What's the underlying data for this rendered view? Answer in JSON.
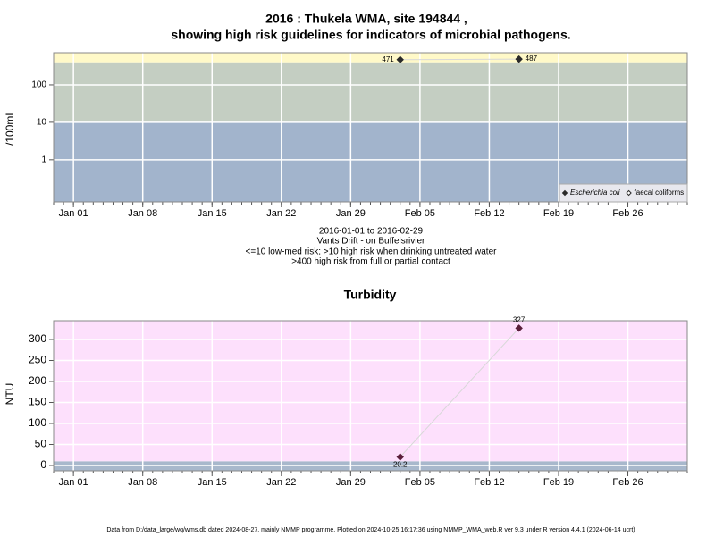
{
  "chart_data": [
    {
      "type": "line",
      "title": [
        "2016 : Thukela WMA, site 194844 ,",
        "showing high risk guidelines for indicators of microbial pathogens."
      ],
      "subtitle": [
        "2016-01-01 to 2016-02-29",
        "Vants Drift - on Buffelsrivier",
        "<=10 low-med risk; >10 high risk when drinking untreated water",
        ">400 high risk from full or partial contact"
      ],
      "y_label": "/100mL",
      "log_y": true,
      "xlim": [
        "2015-12-30",
        "2016-03-03"
      ],
      "xticks": [
        {
          "value": "2016-01-01",
          "label": "Jan 01"
        },
        {
          "value": "2016-01-08",
          "label": "Jan 08"
        },
        {
          "value": "2016-01-15",
          "label": "Jan 15"
        },
        {
          "value": "2016-01-22",
          "label": "Jan 22"
        },
        {
          "value": "2016-01-29",
          "label": "Jan 29"
        },
        {
          "value": "2016-02-05",
          "label": "Feb 05"
        },
        {
          "value": "2016-02-12",
          "label": "Feb 12"
        },
        {
          "value": "2016-02-19",
          "label": "Feb 19"
        },
        {
          "value": "2016-02-26",
          "label": "Feb 26"
        }
      ],
      "ylim": [
        0.075,
        720
      ],
      "yticks": [
        1,
        10,
        100
      ],
      "thresholds": [
        10,
        400
      ],
      "band_colors": [
        "#a2b4cc",
        "#c4cec2",
        "#fff9c8"
      ],
      "grid": true,
      "legend": "lower right",
      "series": [
        {
          "name": "Escherichia coli",
          "color": "#2a2a2a",
          "marker": "filled",
          "x": [
            "2016-02-03",
            "2016-02-15"
          ],
          "values": [
            471,
            487
          ]
        },
        {
          "name": "faecal coliforms",
          "color": "#2a2a2a",
          "marker": "open",
          "x": [],
          "values": []
        }
      ]
    },
    {
      "type": "line",
      "title": [
        "Turbidity"
      ],
      "y_label": "NTU",
      "log_y": false,
      "xlim": [
        "2015-12-30",
        "2016-03-03"
      ],
      "xticks": [
        {
          "value": "2016-01-01",
          "label": "Jan 01"
        },
        {
          "value": "2016-01-08",
          "label": "Jan 08"
        },
        {
          "value": "2016-01-15",
          "label": "Jan 15"
        },
        {
          "value": "2016-01-22",
          "label": "Jan 22"
        },
        {
          "value": "2016-01-29",
          "label": "Jan 29"
        },
        {
          "value": "2016-02-05",
          "label": "Feb 05"
        },
        {
          "value": "2016-02-12",
          "label": "Feb 12"
        },
        {
          "value": "2016-02-19",
          "label": "Feb 19"
        },
        {
          "value": "2016-02-26",
          "label": "Feb 26"
        }
      ],
      "ylim": [
        -12.8,
        344.7
      ],
      "yticks": [
        0,
        50,
        100,
        150,
        200,
        250,
        300
      ],
      "thresholds": [
        10
      ],
      "band_colors": [
        "#a8b8cc",
        "#fde0fc"
      ],
      "grid": true,
      "series": [
        {
          "color": "#5a1e3a",
          "marker": "filled",
          "x": [
            "2016-02-03",
            "2016-02-15"
          ],
          "values": [
            20.2,
            327
          ]
        }
      ]
    }
  ],
  "footer": "Data from D:/data_large/wq/wms.db dated 2024-08-27, mainly NMMP programme. Plotted on 2024-10-25 16:17:36 using NMMP_WMA_web.R ver 9.3 under R version 4.4.1 (2024-06-14 ucrt)"
}
